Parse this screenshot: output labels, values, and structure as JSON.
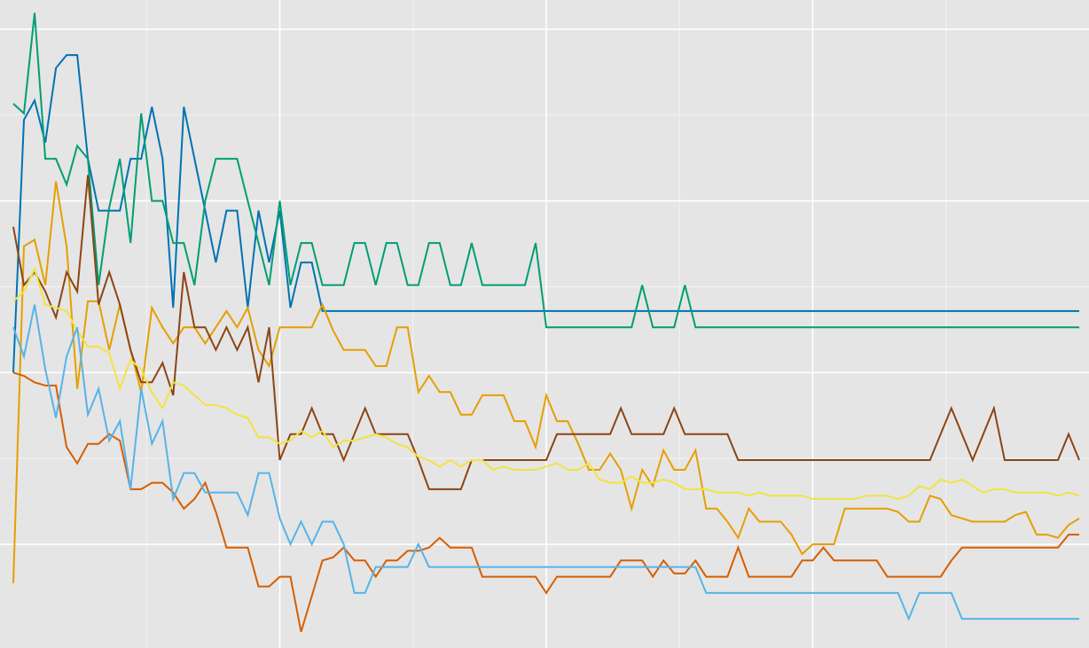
{
  "chart_data": {
    "type": "line",
    "title": "",
    "xlabel": "",
    "ylabel": "",
    "xlim": [
      0,
      100
    ],
    "ylim": [
      0,
      100
    ],
    "grid": true,
    "legend": "none",
    "background_color": "#e5e5e5",
    "grid_color": "#ffffff",
    "x_major_ticks": [
      25,
      50,
      75
    ],
    "x_minor_ticks": [
      12.5,
      37.5,
      62.5,
      87.5
    ],
    "y_major_ticks": [
      16,
      42.5,
      69,
      95.5
    ],
    "y_minor_ticks": [
      29.25,
      55.75,
      82.25
    ],
    "series": [
      {
        "color": "#0072b2",
        "x": [
          0,
          1,
          2,
          3,
          4,
          5,
          6,
          7,
          8,
          9,
          10,
          11,
          12,
          13,
          14,
          15,
          16,
          17,
          18,
          19,
          20,
          21,
          22,
          23,
          24,
          25,
          26,
          27,
          28,
          29,
          30,
          100
        ],
        "y": [
          42.5,
          81.5,
          84.5,
          78,
          89.5,
          91.5,
          91.5,
          75.5,
          67.5,
          67.5,
          67.5,
          75.5,
          75.5,
          83.5,
          75.5,
          52.5,
          83.5,
          75.5,
          67.5,
          59.5,
          67.5,
          67.5,
          52.5,
          67.5,
          59.5,
          67.5,
          52.5,
          59.5,
          59.5,
          52,
          52,
          52
        ]
      },
      {
        "color": "#009e73",
        "x": [
          0,
          1,
          2,
          3,
          4,
          5,
          6,
          7,
          8,
          9,
          10,
          11,
          12,
          13,
          14,
          15,
          16,
          17,
          18,
          19,
          20,
          21,
          22,
          23,
          24,
          25,
          26,
          27,
          28,
          29,
          30,
          31,
          32,
          33,
          34,
          35,
          36,
          37,
          38,
          39,
          40,
          41,
          42,
          43,
          44,
          45,
          46,
          47,
          48,
          49,
          50,
          51,
          58,
          59,
          60,
          62,
          63,
          64,
          100
        ],
        "y": [
          84,
          82.5,
          98,
          75.5,
          75.5,
          71.5,
          77.5,
          75.5,
          56,
          68,
          75.5,
          62.5,
          82.5,
          69,
          69,
          62.5,
          62.5,
          56,
          69,
          75.5,
          75.5,
          75.5,
          69,
          62.5,
          56,
          69,
          56,
          62.5,
          62.5,
          56,
          56,
          56,
          62.5,
          62.5,
          56,
          62.5,
          62.5,
          56,
          56,
          62.5,
          62.5,
          56,
          56,
          62.5,
          56,
          56,
          56,
          56,
          56,
          62.5,
          49.5,
          49.5,
          49.5,
          56,
          49.5,
          49.5,
          56,
          49.5,
          49.5
        ]
      },
      {
        "color": "#e69f00",
        "x": [
          0,
          1,
          2,
          3,
          4,
          5,
          6,
          7,
          8,
          9,
          10,
          11,
          12,
          13,
          14,
          15,
          16,
          17,
          18,
          19,
          20,
          21,
          22,
          23,
          24,
          25,
          26,
          27,
          28,
          29,
          30,
          31,
          32,
          33,
          34,
          35,
          36,
          37,
          38,
          39,
          40,
          41,
          42,
          43,
          44,
          45,
          46,
          47,
          48,
          49,
          50,
          51,
          52,
          53,
          54,
          55,
          56,
          57,
          58,
          59,
          60,
          61,
          62,
          63,
          64,
          65,
          66,
          67,
          68,
          69,
          70,
          71,
          72,
          73,
          74,
          75,
          76,
          77,
          78,
          79,
          80,
          81,
          82,
          83,
          84,
          85,
          86,
          87,
          88,
          89,
          90,
          91,
          92,
          93,
          94,
          95,
          96,
          97,
          98,
          99,
          100
        ],
        "y": [
          10,
          62,
          63,
          56,
          72,
          62,
          40,
          53.5,
          53.5,
          46,
          53,
          46,
          39.5,
          52.5,
          49.5,
          47,
          49.5,
          49.5,
          47,
          49.5,
          52,
          49.5,
          52.5,
          46,
          43.5,
          49.5,
          49.5,
          49.5,
          49.5,
          53,
          49,
          46,
          46,
          46,
          43.5,
          43.5,
          49.5,
          49.5,
          39.5,
          42,
          39.5,
          39.5,
          36,
          36,
          39,
          39,
          39,
          35,
          35,
          31,
          39,
          35,
          35,
          31.5,
          27.5,
          27.5,
          30,
          27.5,
          21.5,
          27.5,
          25,
          30.5,
          27.5,
          27.5,
          30.5,
          21.5,
          21.5,
          19.5,
          17,
          21.5,
          19.5,
          19.5,
          19.5,
          17.5,
          14.5,
          16,
          16,
          16,
          21.5,
          21.5,
          21.5,
          21.5,
          21.5,
          21,
          19.5,
          19.5,
          23.5,
          23,
          20.5,
          20,
          19.5,
          19.5,
          19.5,
          19.5,
          20.5,
          21,
          17.5,
          17.5,
          17,
          19,
          20
        ]
      },
      {
        "color": "#8b4513",
        "x": [
          0,
          1,
          2,
          3,
          4,
          5,
          6,
          7,
          8,
          9,
          10,
          11,
          12,
          13,
          14,
          15,
          16,
          17,
          18,
          19,
          20,
          21,
          22,
          23,
          24,
          25,
          26,
          27,
          28,
          29,
          30,
          31,
          32,
          33,
          34,
          35,
          36,
          37,
          38,
          39,
          40,
          41,
          42,
          43,
          44,
          45,
          46,
          47,
          48,
          49,
          50,
          51,
          52,
          53,
          54,
          55,
          56,
          57,
          58,
          59,
          60,
          61,
          62,
          63,
          64,
          65,
          66,
          67,
          68,
          69,
          70,
          71,
          72,
          73,
          74,
          75,
          76,
          77,
          78,
          79,
          80,
          81,
          82,
          83,
          84,
          85,
          86,
          87,
          88,
          89,
          90,
          91,
          92,
          93,
          94,
          95,
          96,
          97,
          98,
          99,
          100
        ],
        "y": [
          65,
          56,
          58,
          55,
          51,
          58,
          55,
          73,
          53,
          58,
          53,
          46,
          41,
          41,
          44,
          39,
          58,
          49.5,
          49.5,
          46,
          49.5,
          46,
          49.5,
          41,
          49.5,
          29,
          33,
          33,
          37,
          33,
          33,
          29,
          33,
          37,
          33,
          33,
          33,
          33,
          29,
          24.5,
          24.5,
          24.5,
          24.5,
          29,
          29,
          29,
          29,
          29,
          29,
          29,
          29,
          33,
          33,
          33,
          33,
          33,
          33,
          37,
          33,
          33,
          33,
          33,
          37,
          33,
          33,
          33,
          33,
          33,
          29,
          29,
          29,
          29,
          29,
          29,
          29,
          29,
          29,
          29,
          29,
          29,
          29,
          29,
          29,
          29,
          29,
          29,
          29,
          33,
          37,
          33,
          29,
          33,
          37,
          29,
          29,
          29,
          29,
          29,
          29,
          33,
          29
        ]
      },
      {
        "color": "#f0e442",
        "x": [
          0,
          1,
          2,
          3,
          4,
          5,
          6,
          7,
          8,
          9,
          10,
          11,
          12,
          13,
          14,
          15,
          16,
          17,
          18,
          19,
          20,
          21,
          22,
          23,
          24,
          25,
          26,
          27,
          28,
          29,
          30,
          31,
          32,
          33,
          34,
          35,
          36,
          37,
          38,
          39,
          40,
          41,
          42,
          43,
          44,
          45,
          46,
          47,
          48,
          49,
          50,
          51,
          52,
          53,
          54,
          55,
          56,
          57,
          58,
          59,
          60,
          61,
          62,
          63,
          64,
          65,
          66,
          67,
          68,
          69,
          70,
          71,
          72,
          73,
          74,
          75,
          76,
          77,
          78,
          79,
          80,
          81,
          82,
          83,
          84,
          85,
          86,
          87,
          88,
          89,
          90,
          91,
          92,
          93,
          94,
          95,
          96,
          97,
          98,
          99,
          100
        ],
        "y": [
          53.5,
          55,
          58.5,
          53,
          52.5,
          52,
          49,
          46.5,
          46.5,
          45.5,
          40,
          44.5,
          43,
          39.5,
          37,
          41,
          40.5,
          39,
          37.5,
          37.5,
          37,
          36,
          35.5,
          32.5,
          32.5,
          31.5,
          32,
          33.5,
          32.5,
          33.5,
          31,
          32,
          32,
          32.5,
          33,
          32.5,
          31.5,
          31,
          29.5,
          29,
          28,
          29,
          28,
          29,
          29,
          27.5,
          28,
          27.5,
          27.5,
          27.5,
          28,
          28.5,
          27.5,
          27.5,
          28.5,
          26,
          25.5,
          25.5,
          26.5,
          25.5,
          25.5,
          26,
          25.5,
          24.5,
          24.5,
          24.5,
          24,
          24,
          24,
          23.5,
          24,
          23.5,
          23.5,
          23.5,
          23.5,
          23,
          23,
          23,
          23,
          23,
          23.5,
          23.5,
          23.5,
          23,
          23.5,
          25,
          24.5,
          26,
          25.5,
          26,
          25,
          24,
          24.5,
          24.5,
          24,
          24,
          24,
          24,
          23.5,
          24,
          23.5
        ]
      },
      {
        "color": "#d55e00",
        "x": [
          0,
          1,
          2,
          3,
          4,
          5,
          6,
          7,
          8,
          9,
          10,
          11,
          12,
          13,
          14,
          15,
          16,
          17,
          18,
          19,
          20,
          21,
          22,
          23,
          24,
          25,
          26,
          27,
          28,
          29,
          30,
          31,
          32,
          33,
          34,
          35,
          36,
          37,
          38,
          39,
          40,
          41,
          42,
          43,
          44,
          45,
          46,
          47,
          48,
          49,
          50,
          51,
          52,
          53,
          54,
          55,
          56,
          57,
          58,
          59,
          60,
          61,
          62,
          63,
          64,
          65,
          66,
          67,
          68,
          69,
          70,
          71,
          72,
          73,
          74,
          75,
          76,
          77,
          78,
          79,
          80,
          81,
          82,
          83,
          84,
          85,
          86,
          87,
          88,
          89,
          90,
          91,
          92,
          93,
          94,
          95,
          96,
          97,
          98,
          99,
          100
        ],
        "y": [
          42.5,
          42,
          41,
          40.5,
          40.5,
          31,
          28.5,
          31.5,
          31.5,
          33,
          32,
          24.5,
          24.5,
          25.5,
          25.5,
          24,
          21.5,
          23,
          25.5,
          21,
          15.5,
          15.5,
          15.5,
          9.5,
          9.5,
          11,
          11,
          2.5,
          8,
          13.5,
          14,
          15.5,
          13.5,
          13.5,
          11,
          13.5,
          13.5,
          15,
          15,
          15.5,
          17,
          15.5,
          15.5,
          15.5,
          11,
          11,
          11,
          11,
          11,
          11,
          8.5,
          11,
          11,
          11,
          11,
          11,
          11,
          13.5,
          13.5,
          13.5,
          11,
          13.5,
          11.5,
          11.5,
          13.5,
          11,
          11,
          11,
          15.5,
          11,
          11,
          11,
          11,
          11,
          13.5,
          13.5,
          15.5,
          13.5,
          13.5,
          13.5,
          13.5,
          13.5,
          11,
          11,
          11,
          11,
          11,
          11,
          13.5,
          15.5,
          15.5,
          15.5,
          15.5,
          15.5,
          15.5,
          15.5,
          15.5,
          15.5,
          15.5,
          17.5,
          17.5
        ]
      },
      {
        "color": "#56b4e9",
        "x": [
          0,
          1,
          2,
          3,
          4,
          5,
          6,
          7,
          8,
          9,
          10,
          11,
          12,
          13,
          14,
          15,
          16,
          17,
          18,
          19,
          20,
          21,
          22,
          23,
          24,
          25,
          26,
          27,
          28,
          29,
          30,
          31,
          32,
          33,
          34,
          35,
          36,
          37,
          38,
          39,
          40,
          41,
          42,
          43,
          44,
          45,
          46,
          47,
          48,
          49,
          50,
          51,
          52,
          53,
          54,
          55,
          56,
          57,
          58,
          59,
          60,
          61,
          62,
          63,
          64,
          65,
          66,
          67,
          68,
          69,
          70,
          71,
          72,
          73,
          74,
          75,
          76,
          77,
          78,
          79,
          80,
          81,
          82,
          83,
          84,
          85,
          86,
          87,
          88,
          89,
          90,
          91,
          92,
          93,
          94,
          95,
          96,
          97,
          98,
          99,
          100
        ],
        "y": [
          49.5,
          45,
          53,
          43,
          35.5,
          45,
          49.5,
          36,
          40,
          32,
          35,
          24.5,
          40,
          31.5,
          35,
          23,
          27,
          27,
          24,
          24,
          24,
          24,
          20.5,
          27,
          27,
          20,
          16,
          19.5,
          16,
          19.5,
          19.5,
          16,
          8.5,
          8.5,
          12.5,
          12.5,
          12.5,
          12.5,
          16,
          12.5,
          12.5,
          12.5,
          12.5,
          12.5,
          12.5,
          12.5,
          12.5,
          12.5,
          12.5,
          12.5,
          12.5,
          12.5,
          12.5,
          12.5,
          12.5,
          12.5,
          12.5,
          12.5,
          12.5,
          12.5,
          12.5,
          12.5,
          12.5,
          12.5,
          12.5,
          8.5,
          8.5,
          8.5,
          8.5,
          8.5,
          8.5,
          8.5,
          8.5,
          8.5,
          8.5,
          8.5,
          8.5,
          8.5,
          8.5,
          8.5,
          8.5,
          8.5,
          8.5,
          8.5,
          4.5,
          8.5,
          8.5,
          8.5,
          8.5,
          4.5,
          4.5,
          4.5,
          4.5,
          4.5,
          4.5,
          4.5,
          4.5,
          4.5,
          4.5,
          4.5,
          4.5
        ]
      }
    ]
  }
}
